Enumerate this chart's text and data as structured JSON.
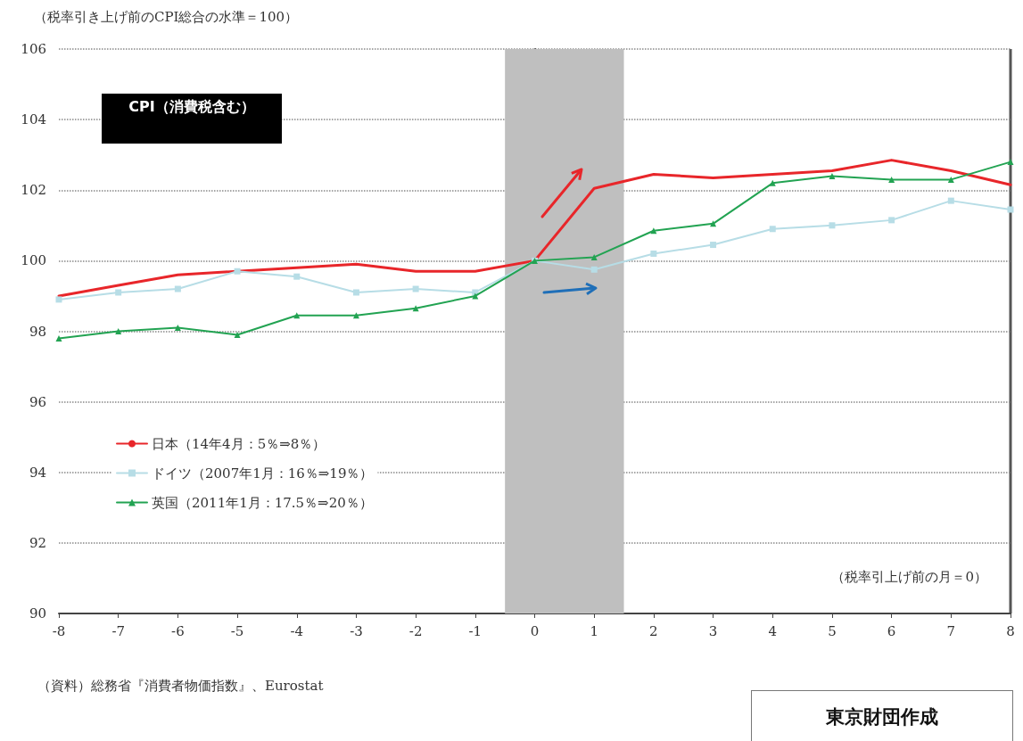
{
  "chart_data": {
    "type": "line",
    "ylabel": "（税率引き上げ前のCPI総合の水準＝100）",
    "x": [
      -8,
      -7,
      -6,
      -5,
      -4,
      -3,
      -2,
      -1,
      0,
      1,
      2,
      3,
      4,
      5,
      6,
      7,
      8
    ],
    "series": [
      {
        "name": "日本（14年4月：5％⇒8％）",
        "color": "#e8262a",
        "marker": "none",
        "values": [
          99.0,
          99.3,
          99.6,
          99.7,
          99.8,
          99.9,
          99.7,
          99.7,
          100,
          102.05,
          102.45,
          102.35,
          102.45,
          102.55,
          102.85,
          102.55,
          102.15
        ]
      },
      {
        "name": "ドイツ（2007年1月：16％⇒19％）",
        "color": "#b7dde6",
        "marker": "square",
        "values": [
          98.9,
          99.1,
          99.2,
          99.7,
          99.55,
          99.1,
          99.2,
          99.1,
          100,
          99.75,
          100.2,
          100.45,
          100.9,
          101.0,
          101.15,
          101.7,
          101.45
        ]
      },
      {
        "name": "英国（2011年1月：17.5％⇒20％）",
        "color": "#22a352",
        "marker": "triangle",
        "values": [
          97.8,
          98.0,
          98.1,
          97.9,
          98.45,
          98.45,
          98.65,
          99.0,
          100,
          100.1,
          100.85,
          101.05,
          102.2,
          102.4,
          102.3,
          102.3,
          102.8
        ]
      }
    ],
    "xlim": [
      -8,
      8
    ],
    "xticks": [
      -8,
      -7,
      -6,
      -5,
      -4,
      -3,
      -2,
      -1,
      0,
      1,
      2,
      3,
      4,
      5,
      6,
      7,
      8
    ],
    "ylim": [
      90,
      106
    ],
    "yticks": [
      90,
      92,
      94,
      96,
      98,
      100,
      102,
      104,
      106
    ],
    "bands": [
      {
        "axis": "x",
        "from": -0.5,
        "to": 1.5,
        "color": "#bfbfbf"
      }
    ],
    "annotations": [
      "CPI（消費税含む）",
      "（税率引上げ前の月＝0）",
      "（資料）総務省『消費者物価指数』、Eurostat",
      "東京財団作成"
    ],
    "grid": "y",
    "legend": "bottom left",
    "line_style": "solid"
  }
}
